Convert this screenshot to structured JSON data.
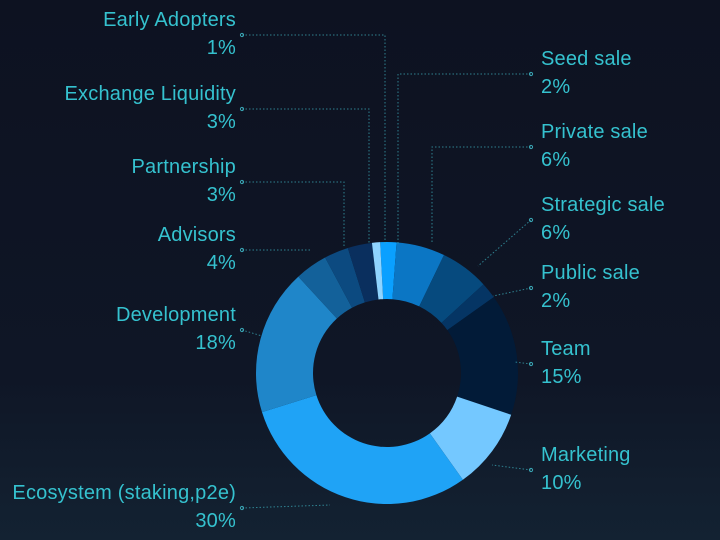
{
  "chart_data": {
    "type": "pie",
    "donut": true,
    "title": "",
    "legend": "none",
    "slices": [
      {
        "name": "Seed sale",
        "value": 2,
        "label": "2%",
        "color": "#0aa0ff"
      },
      {
        "name": "Private sale",
        "value": 6,
        "label": "6%",
        "color": "#0b76c4"
      },
      {
        "name": "Strategic sale",
        "value": 6,
        "label": "6%",
        "color": "#064a7e"
      },
      {
        "name": "Public sale",
        "value": 2,
        "label": "2%",
        "color": "#053564"
      },
      {
        "name": "Team",
        "value": 15,
        "label": "15%",
        "color": "#021b38"
      },
      {
        "name": "Marketing",
        "value": 10,
        "label": "10%",
        "color": "#74c8ff"
      },
      {
        "name": "Ecosystem (staking,p2e)",
        "value": 30,
        "label": "30%",
        "color": "#1fa3f6"
      },
      {
        "name": "Development",
        "value": 18,
        "label": "18%",
        "color": "#1f86c9"
      },
      {
        "name": "Advisors",
        "value": 4,
        "label": "4%",
        "color": "#13619a"
      },
      {
        "name": "Partnership",
        "value": 3,
        "label": "3%",
        "color": "#0c4a80"
      },
      {
        "name": "Exchange Liquidity",
        "value": 3,
        "label": "3%",
        "color": "#0a2f5e"
      },
      {
        "name": "Early Adopters",
        "value": 1,
        "label": "1%",
        "color": "#8fd4ff"
      }
    ]
  },
  "colors": {
    "label": "#35c2cf",
    "leader": "#3aa5b4",
    "background": "#0d1221"
  }
}
